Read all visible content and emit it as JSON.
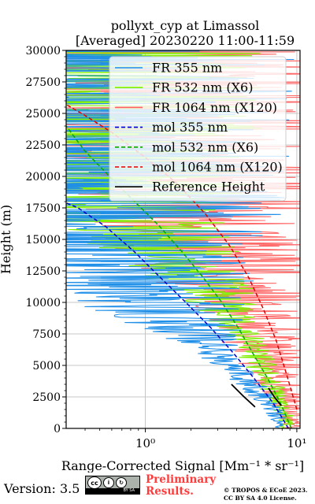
{
  "title": {
    "line1": "pollyxt_cyp at Limassol",
    "line2": "[Averaged] 20230220 11:00-11:59"
  },
  "chart_data": {
    "type": "line",
    "xlabel": "Range-Corrected Signal [Mm⁻¹ * sr⁻¹]",
    "ylabel": "Height (m)",
    "xscale": "log",
    "xlim": [
      0.3,
      10.5
    ],
    "ylim": [
      0,
      30000
    ],
    "grid": true,
    "legend_position": "top-right",
    "y_ticks": [
      0,
      2500,
      5000,
      7500,
      10000,
      12500,
      15000,
      17500,
      20000,
      22500,
      25000,
      27500,
      30000
    ],
    "x_major_ticks": [
      1,
      10
    ],
    "x_tick_labels": [
      "10⁰",
      "10¹"
    ],
    "legend": [
      {
        "label": "FR 355 nm",
        "color": "#1f8fe8",
        "style": "solid"
      },
      {
        "label": "FR 532 nm (X6)",
        "color": "#80ee00",
        "style": "solid"
      },
      {
        "label": "FR 1064 nm (X120)",
        "color": "#ff6060",
        "style": "solid"
      },
      {
        "label": "mol 355 nm",
        "color": "#0000cc",
        "style": "dashed"
      },
      {
        "label": "mol 532 nm (X6)",
        "color": "#00aa00",
        "style": "dashed"
      },
      {
        "label": "mol 1064 nm (X120)",
        "color": "#dd0000",
        "style": "dashed"
      },
      {
        "label": "Reference Height",
        "color": "#000000",
        "style": "solid"
      }
    ],
    "series": [
      {
        "name": "mol 355 nm",
        "color": "#0000cc",
        "dashed": true,
        "points": [
          [
            8.8,
            0
          ],
          [
            7.0,
            2000
          ],
          [
            5.2,
            4000
          ],
          [
            3.8,
            6000
          ],
          [
            2.7,
            8000
          ],
          [
            1.85,
            10000
          ],
          [
            1.25,
            12000
          ],
          [
            0.85,
            14000
          ],
          [
            0.55,
            16000
          ],
          [
            0.36,
            17500
          ],
          [
            0.3,
            17900
          ]
        ]
      },
      {
        "name": "mol 532 nm (X6)",
        "color": "#00aa00",
        "dashed": true,
        "points": [
          [
            9.2,
            0
          ],
          [
            7.8,
            2000
          ],
          [
            6.4,
            4000
          ],
          [
            5.1,
            6000
          ],
          [
            4.1,
            8000
          ],
          [
            3.2,
            10000
          ],
          [
            2.4,
            12000
          ],
          [
            1.75,
            14000
          ],
          [
            1.25,
            16000
          ],
          [
            0.85,
            18000
          ],
          [
            0.58,
            20000
          ],
          [
            0.4,
            22000
          ],
          [
            0.3,
            24000
          ]
        ]
      },
      {
        "name": "mol 1064 nm (X120)",
        "color": "#dd0000",
        "dashed": true,
        "points": [
          [
            10.0,
            1500
          ],
          [
            8.7,
            4000
          ],
          [
            7.3,
            7000
          ],
          [
            6.0,
            9500
          ],
          [
            4.8,
            12000
          ],
          [
            3.6,
            14500
          ],
          [
            2.5,
            17000
          ],
          [
            1.6,
            19500
          ],
          [
            1.0,
            21500
          ],
          [
            0.6,
            23500
          ],
          [
            0.38,
            25000
          ],
          [
            0.3,
            25700
          ]
        ]
      },
      {
        "name": "Reference Height",
        "color": "#000000",
        "dashed": false,
        "points": [
          [
            3.7,
            3500
          ],
          [
            4.4,
            2600
          ],
          [
            5.3,
            1700
          ]
        ]
      },
      {
        "name": "Reference Height",
        "color": "#000000",
        "dashed": false,
        "points": [
          [
            6.5,
            3200
          ],
          [
            7.1,
            2500
          ],
          [
            7.9,
            1800
          ]
        ]
      }
    ],
    "noisy_profiles": [
      {
        "name": "FR 1064 nm (X120)",
        "color": "#ff6a6a",
        "centers": [
          [
            9.0,
            1000
          ],
          [
            8.0,
            3000
          ],
          [
            7.0,
            5000
          ],
          [
            6.0,
            7000
          ],
          [
            5.0,
            9000
          ],
          [
            4.0,
            11000
          ],
          [
            3.2,
            13000
          ],
          [
            2.6,
            15000
          ],
          [
            2.2,
            17000
          ],
          [
            2.0,
            19000
          ],
          [
            1.8,
            21000
          ],
          [
            1.7,
            23000
          ],
          [
            1.6,
            25000
          ],
          [
            1.5,
            27000
          ],
          [
            1.5,
            29500
          ]
        ],
        "spread": [
          [
            0,
            0.3
          ],
          [
            7000,
            1.2
          ],
          [
            15000,
            3.0
          ],
          [
            30000,
            5.0
          ]
        ]
      },
      {
        "name": "FR 532 nm (X6)",
        "color": "#7ff000",
        "centers": [
          [
            8.5,
            1000
          ],
          [
            7.0,
            3000
          ],
          [
            5.8,
            5000
          ],
          [
            4.6,
            7000
          ],
          [
            3.5,
            9000
          ],
          [
            2.7,
            11000
          ],
          [
            1.9,
            13000
          ],
          [
            1.3,
            15000
          ],
          [
            0.9,
            17000
          ],
          [
            0.7,
            19000
          ],
          [
            0.6,
            21000
          ],
          [
            0.55,
            23000
          ],
          [
            0.5,
            26000
          ],
          [
            0.5,
            29500
          ]
        ],
        "spread": [
          [
            0,
            0.2
          ],
          [
            8000,
            0.6
          ],
          [
            14000,
            2.0
          ],
          [
            20000,
            4.0
          ],
          [
            30000,
            5.0
          ]
        ]
      },
      {
        "name": "FR 355 nm",
        "color": "#1f8fe8",
        "centers": [
          [
            7.5,
            1000
          ],
          [
            5.5,
            3000
          ],
          [
            3.5,
            5000
          ],
          [
            2.4,
            7000
          ],
          [
            1.6,
            9000
          ],
          [
            1.1,
            11000
          ],
          [
            0.8,
            13000
          ],
          [
            0.6,
            15000
          ],
          [
            0.5,
            18000
          ],
          [
            0.45,
            22000
          ],
          [
            0.4,
            26000
          ],
          [
            0.4,
            29800
          ]
        ],
        "spread": [
          [
            0,
            0.2
          ],
          [
            6000,
            0.6
          ],
          [
            10000,
            2.5
          ],
          [
            16000,
            5.0
          ],
          [
            30000,
            6.0
          ]
        ]
      }
    ]
  },
  "footer": {
    "version": "Version: 3.5",
    "license_badge_text": "BY  SA",
    "preliminary_line1": "Preliminary",
    "preliminary_line2": "Results.",
    "copyright_line1": "© TROPOS & ECoE 2023.",
    "copyright_line2": "CC BY SA 4.0 License."
  }
}
